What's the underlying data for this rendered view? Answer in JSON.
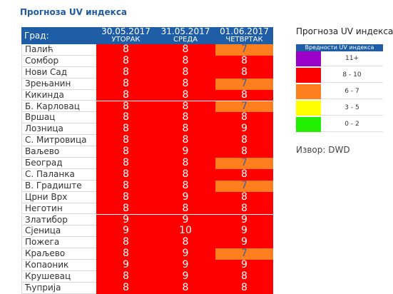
{
  "title": "Прогноза UV индекса",
  "table": {
    "city_header": "Град:",
    "columns": [
      {
        "date": "30.05.2017",
        "day": "УТОРАК"
      },
      {
        "date": "31.05.2017",
        "day": "СРЕДА"
      },
      {
        "date": "01.06.2017",
        "day": "ЧЕТВРТАК"
      }
    ],
    "rows": [
      [
        "Палић",
        8,
        8,
        7
      ],
      [
        "Сомбор",
        8,
        8,
        8
      ],
      [
        "Нови Сад",
        8,
        8,
        8
      ],
      [
        "Зрењанин",
        8,
        8,
        7
      ],
      [
        "Кикинда",
        8,
        8,
        8
      ],
      [
        "Б. Карловац",
        8,
        8,
        7
      ],
      [
        "Вршац",
        8,
        8,
        8
      ],
      [
        "Лозница",
        8,
        8,
        9
      ],
      [
        "С. Митровица",
        8,
        8,
        8
      ],
      [
        "Ваљево",
        8,
        9,
        8
      ],
      [
        "Београд",
        8,
        8,
        7
      ],
      [
        "С. Паланка",
        8,
        8,
        8
      ],
      [
        "В. Градиште",
        8,
        8,
        7
      ],
      [
        "Црни Врх",
        8,
        9,
        8
      ],
      [
        "Неготин",
        8,
        8,
        8
      ],
      [
        "Златибор",
        9,
        9,
        9
      ],
      [
        "Сјеница",
        9,
        10,
        9
      ],
      [
        "Пожега",
        8,
        8,
        9
      ],
      [
        "Краљево",
        8,
        9,
        7
      ],
      [
        "Копаоник",
        9,
        9,
        9
      ],
      [
        "Крушевац",
        8,
        9,
        8
      ],
      [
        "Ћуприја",
        8,
        8,
        8
      ]
    ]
  },
  "legend": {
    "title": "Прогноза UV индекса",
    "header": "Вредности UV индекса",
    "items": [
      {
        "label": "11+",
        "color": "#9b00c8",
        "text_color": "#ffffff"
      },
      {
        "label": "8 - 10",
        "color": "#ff0000",
        "text_color": "#ffffff"
      },
      {
        "label": "6 - 7",
        "color": "#ff7f1e",
        "text_color": "#3a5fa0"
      },
      {
        "label": "3 - 5",
        "color": "#ffff00",
        "text_color": "#ffffff"
      },
      {
        "label": "0 - 2",
        "color": "#22ee00",
        "text_color": "#ffffff"
      }
    ]
  },
  "source": "Извор: DWD"
}
